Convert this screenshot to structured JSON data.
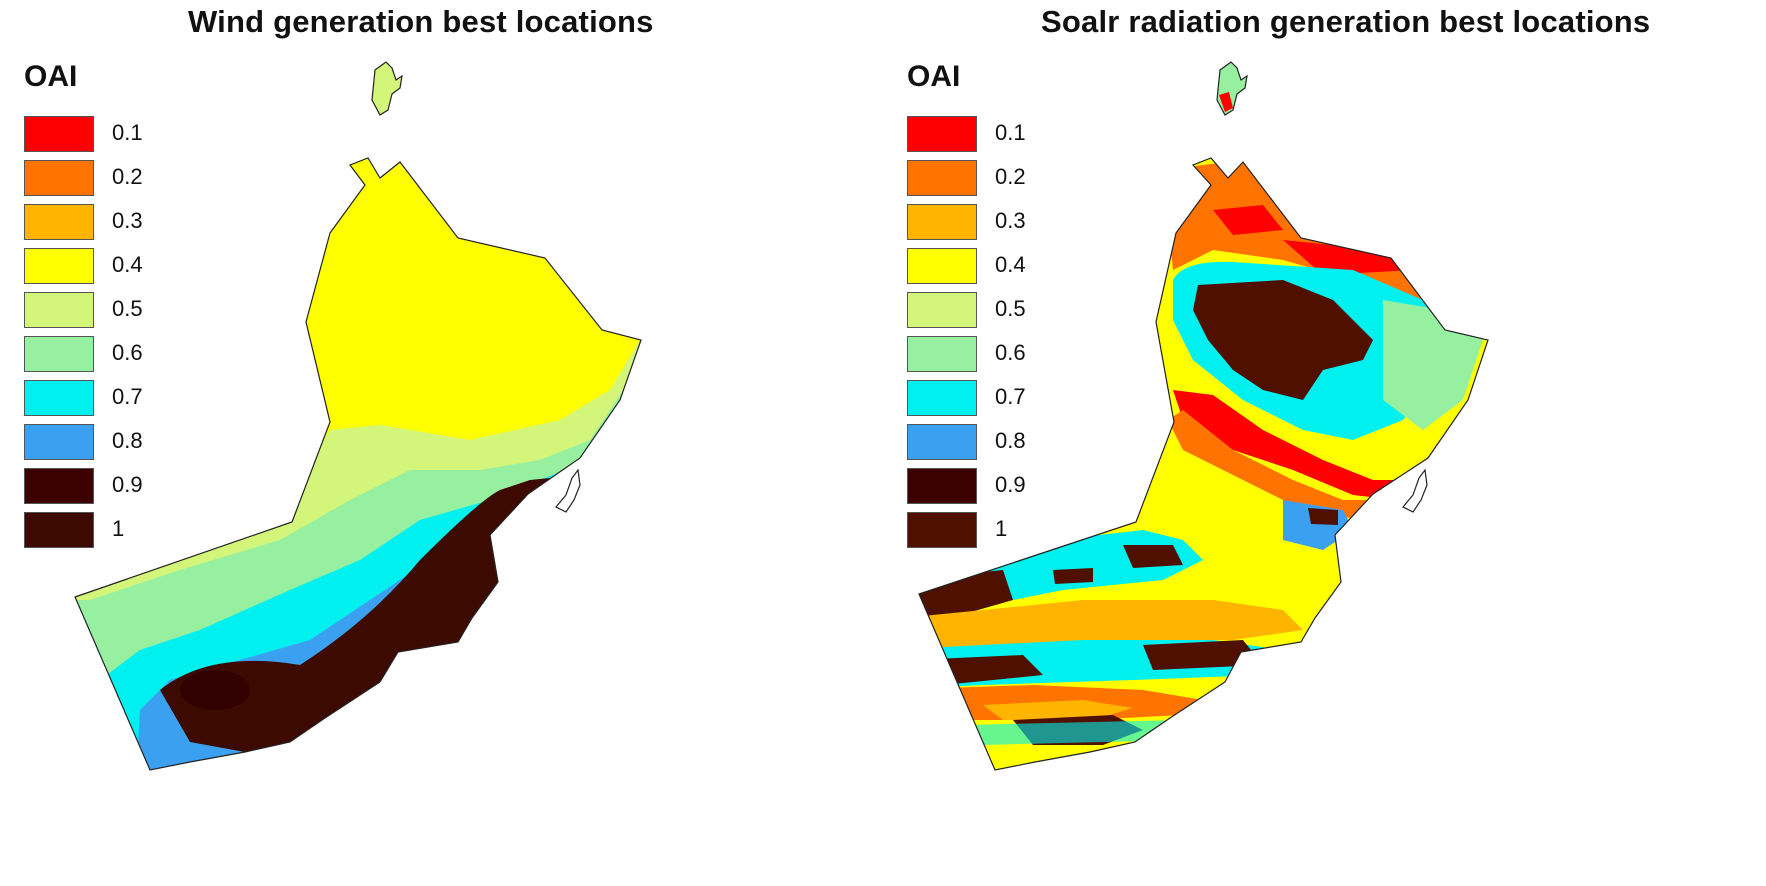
{
  "panels": [
    {
      "title": "Wind generation best locations",
      "legend_title": "OAI",
      "legend": [
        {
          "label": "0.1",
          "color": "#ff0000"
        },
        {
          "label": "0.2",
          "color": "#ff7300"
        },
        {
          "label": "0.3",
          "color": "#ffb400"
        },
        {
          "label": "0.4",
          "color": "#ffff00"
        },
        {
          "label": "0.5",
          "color": "#d2f57a"
        },
        {
          "label": "0.6",
          "color": "#96f0a0"
        },
        {
          "label": "0.7",
          "color": "#00f0f0"
        },
        {
          "label": "0.8",
          "color": "#3ca0f0"
        },
        {
          "label": "0.9",
          "color": "#3c0000"
        },
        {
          "label": "1",
          "color": "#3c0a00"
        }
      ]
    },
    {
      "title": "Soalr radiation generation best locations",
      "legend_title": "OAI",
      "legend": [
        {
          "label": "0.1",
          "color": "#ff0000"
        },
        {
          "label": "0.2",
          "color": "#ff7300"
        },
        {
          "label": "0.3",
          "color": "#ffb400"
        },
        {
          "label": "0.4",
          "color": "#ffff00"
        },
        {
          "label": "0.5",
          "color": "#d2f57a"
        },
        {
          "label": "0.6",
          "color": "#96f0a0"
        },
        {
          "label": "0.7",
          "color": "#00f0f0"
        },
        {
          "label": "0.8",
          "color": "#3ca0f0"
        },
        {
          "label": "0.9",
          "color": "#3c0000"
        },
        {
          "label": "1",
          "color": "#501000"
        }
      ]
    }
  ]
}
